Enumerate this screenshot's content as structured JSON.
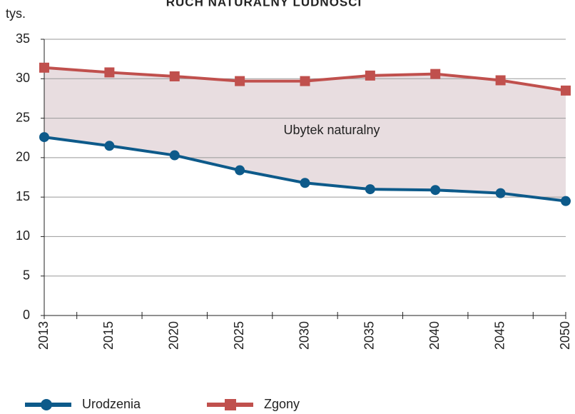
{
  "chart_data": {
    "type": "line",
    "title": "RUCH NATURALNY LUDNOŚCI",
    "y_label": "tys.",
    "annotation": "Ubytek naturalny",
    "categories": [
      "2013",
      "2015",
      "2020",
      "2025",
      "2030",
      "2035",
      "2040",
      "2045",
      "2050"
    ],
    "series": [
      {
        "name": "Urodzenia",
        "color": "#0d5a8a",
        "marker": "circle",
        "values": [
          22.6,
          21.5,
          20.3,
          18.4,
          16.8,
          16.0,
          15.9,
          15.5,
          14.5
        ]
      },
      {
        "name": "Zgony",
        "color": "#c0504d",
        "marker": "square",
        "values": [
          31.4,
          30.8,
          30.3,
          29.7,
          29.7,
          30.4,
          30.6,
          29.8,
          28.5
        ]
      }
    ],
    "fill_between": "#e8dde0",
    "ylim": [
      0,
      35
    ],
    "yticks": [
      0,
      5,
      10,
      15,
      20,
      25,
      30,
      35
    ],
    "grid": true
  }
}
